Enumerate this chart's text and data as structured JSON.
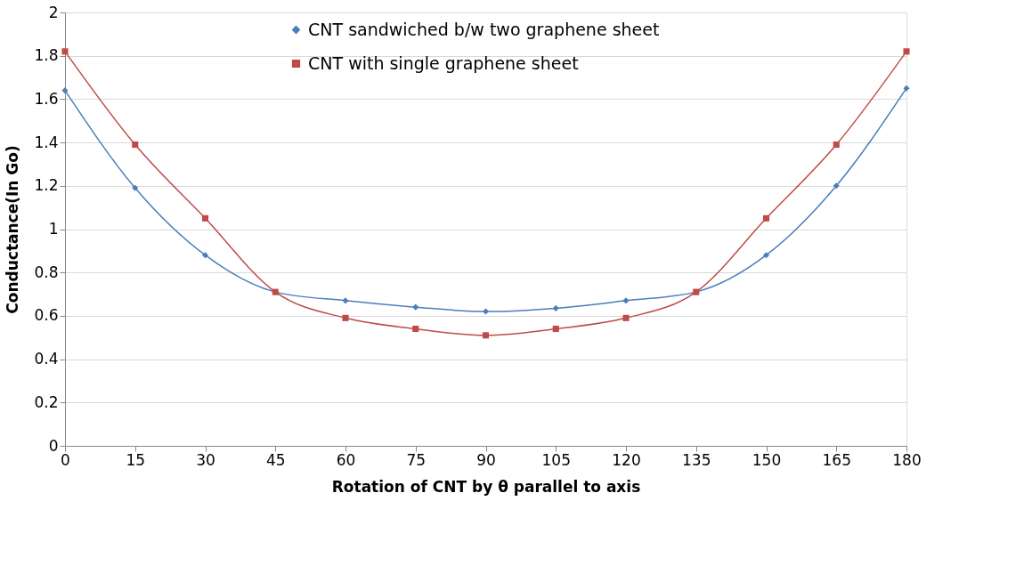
{
  "chart_data": {
    "type": "line",
    "xlabel": "Rotation of CNT by θ parallel to axis",
    "ylabel": "Conductance(In Go)",
    "x": [
      0,
      15,
      30,
      45,
      60,
      75,
      90,
      105,
      120,
      135,
      150,
      165,
      180
    ],
    "series": [
      {
        "name": "CNT sandwiched b/w two graphene sheet",
        "color": "#4a7ebb",
        "marker": "diamond",
        "values": [
          1.64,
          1.19,
          0.88,
          0.71,
          0.67,
          0.64,
          0.62,
          0.635,
          0.67,
          0.71,
          0.88,
          1.2,
          1.65
        ]
      },
      {
        "name": "CNT with single graphene sheet",
        "color": "#be4b48",
        "marker": "square",
        "values": [
          1.82,
          1.39,
          1.05,
          0.71,
          0.59,
          0.54,
          0.51,
          0.54,
          0.59,
          0.71,
          1.05,
          1.39,
          1.82
        ]
      }
    ],
    "xlim": [
      0,
      180
    ],
    "xticks": [
      0,
      15,
      30,
      45,
      60,
      75,
      90,
      105,
      120,
      135,
      150,
      165,
      180
    ],
    "ylim": [
      0,
      2
    ],
    "yticks": [
      0,
      0.2,
      0.4,
      0.6,
      0.8,
      1,
      1.2,
      1.4,
      1.6,
      1.8,
      2
    ],
    "grid": "y",
    "legend": "top",
    "line_style": "solid"
  }
}
